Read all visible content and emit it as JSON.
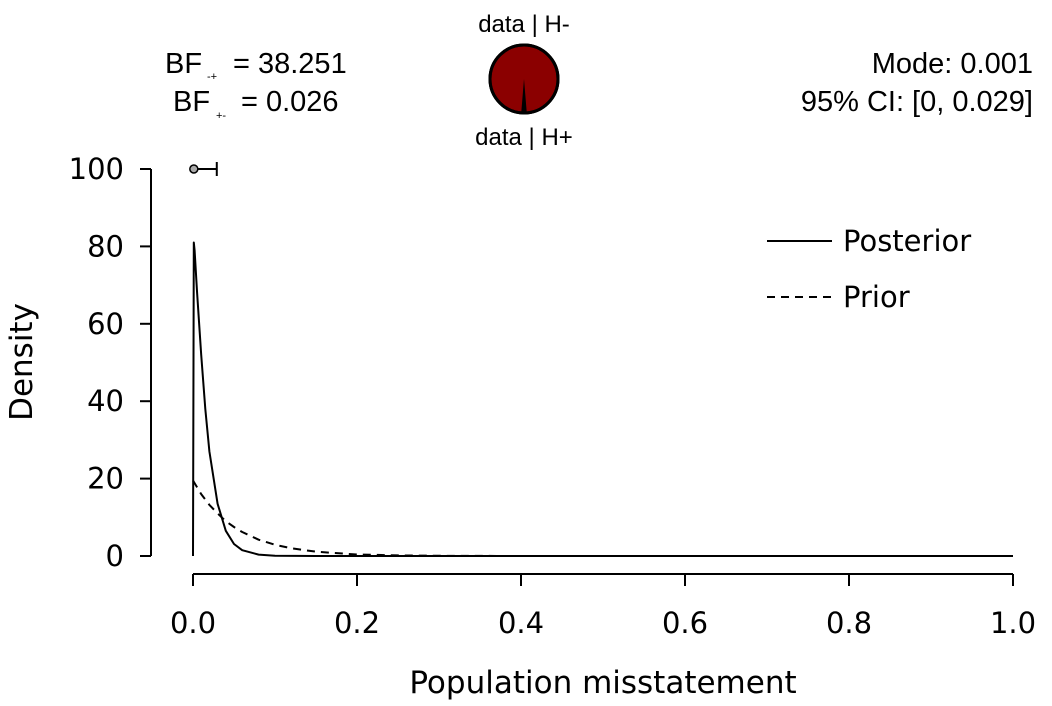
{
  "chart_data": {
    "type": "line",
    "xlabel": "Population misstatement",
    "ylabel": "Density",
    "xlim": [
      0,
      1
    ],
    "ylim": [
      0,
      100
    ],
    "x_ticks": [
      "0.0",
      "0.2",
      "0.4",
      "0.6",
      "0.8",
      "1.0"
    ],
    "y_ticks": [
      "0",
      "20",
      "40",
      "60",
      "80",
      "100"
    ],
    "legend_position": "top-right",
    "series": [
      {
        "name": "Posterior",
        "line_style": "solid",
        "x": [
          0,
          0.001,
          0.002,
          0.005,
          0.01,
          0.015,
          0.02,
          0.03,
          0.04,
          0.05,
          0.06,
          0.08,
          0.1,
          0.15,
          0.2,
          0.4,
          0.6,
          0.8,
          1.0
        ],
        "y": [
          0,
          81,
          79,
          68,
          52,
          38,
          27,
          13.5,
          6.5,
          3.1,
          1.5,
          0.35,
          0.08,
          0,
          0,
          0,
          0,
          0,
          0
        ]
      },
      {
        "name": "Prior",
        "line_style": "dashed",
        "x": [
          0,
          0.01,
          0.02,
          0.03,
          0.04,
          0.05,
          0.06,
          0.08,
          0.1,
          0.12,
          0.15,
          0.2,
          0.25,
          0.3,
          0.4,
          0.6,
          0.8,
          1.0
        ],
        "y": [
          19.5,
          16,
          13.2,
          11,
          9,
          7.5,
          6.2,
          4.2,
          2.9,
          2.0,
          1.1,
          0.4,
          0.15,
          0.05,
          0,
          0,
          0,
          0
        ]
      }
    ],
    "credible_interval": {
      "point": 0.001,
      "lower": 0,
      "upper": 0.029,
      "y": 100
    },
    "bayes_factors": {
      "bf_minus_plus": {
        "prefix": "BF",
        "subscript": "-+",
        "value_text": "= 38.251"
      },
      "bf_plus_minus": {
        "prefix": "BF",
        "subscript": "+-",
        "value_text": "= 0.026"
      }
    },
    "summary": {
      "mode_text": "Mode: 0.001",
      "ci_text": "95% CI: [0, 0.029]"
    },
    "evidence_pie": {
      "top_label": "data | H-",
      "bottom_label": "data | H+",
      "h_plus_fraction": 0.026,
      "color_h_minus": "#8B0000",
      "color_h_plus": "#000000"
    }
  }
}
